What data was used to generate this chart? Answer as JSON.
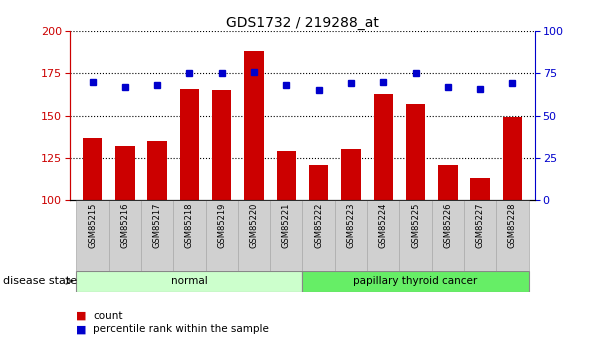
{
  "title": "GDS1732 / 219288_at",
  "samples": [
    "GSM85215",
    "GSM85216",
    "GSM85217",
    "GSM85218",
    "GSM85219",
    "GSM85220",
    "GSM85221",
    "GSM85222",
    "GSM85223",
    "GSM85224",
    "GSM85225",
    "GSM85226",
    "GSM85227",
    "GSM85228"
  ],
  "counts": [
    137,
    132,
    135,
    166,
    165,
    188,
    129,
    121,
    130,
    163,
    157,
    121,
    113,
    149
  ],
  "percentiles": [
    70,
    67,
    68,
    75,
    75,
    76,
    68,
    65,
    69,
    70,
    75,
    67,
    66,
    69
  ],
  "bar_color": "#cc0000",
  "dot_color": "#0000cc",
  "ylim_left": [
    100,
    200
  ],
  "ylim_right": [
    0,
    100
  ],
  "yticks_left": [
    100,
    125,
    150,
    175,
    200
  ],
  "yticks_right": [
    0,
    25,
    50,
    75,
    100
  ],
  "groups": [
    {
      "label": "normal",
      "start": 0,
      "end": 7,
      "color": "#ccffcc"
    },
    {
      "label": "papillary thyroid cancer",
      "start": 7,
      "end": 14,
      "color": "#66ee66"
    }
  ],
  "normal_color": "#ccffcc",
  "cancer_color": "#55dd55",
  "disease_state_label": "disease state",
  "legend_items": [
    {
      "label": "count",
      "color": "#cc0000"
    },
    {
      "label": "percentile rank within the sample",
      "color": "#0000cc"
    }
  ],
  "grid_color": "black",
  "background_color": "#ffffff",
  "tick_area_color": "#d0d0d0",
  "tick_area_border": "#aaaaaa"
}
